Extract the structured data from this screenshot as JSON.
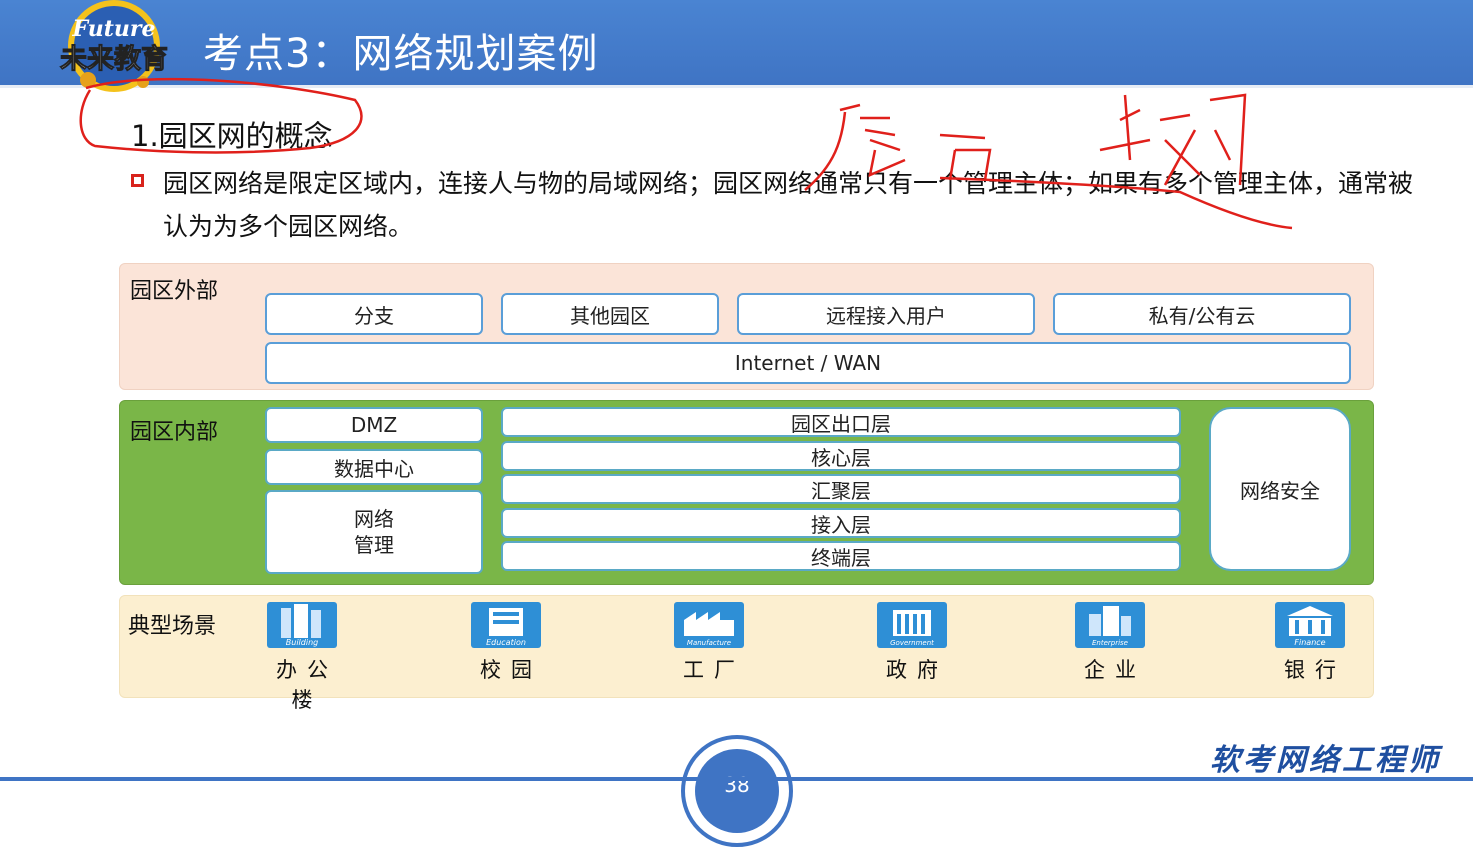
{
  "header": {
    "logo_text_top": "Future",
    "logo_text_bottom": "未来教育",
    "title": "考点3：网络规划案例"
  },
  "section_title": "1.园区网的概念",
  "paragraph": "园区网络是限定区域内，连接人与物的局域网络；园区网络通常只有一个管理主体；如果有多个管理主体，通常被认为为多个园区网络。",
  "outer": {
    "label": "园区外部",
    "boxes": [
      "分支",
      "其他园区",
      "远程接入用户",
      "私有/公有云"
    ],
    "wan": "Internet / WAN"
  },
  "inner": {
    "label": "园区内部",
    "left_boxes": [
      "DMZ",
      "数据中心",
      "网络\n管理"
    ],
    "layers": [
      "园区出口层",
      "核心层",
      "汇聚层",
      "接入层",
      "终端层"
    ],
    "security": "网络安全"
  },
  "scenes": {
    "label": "典型场景",
    "items": [
      {
        "label": "办公楼",
        "icon_text": "Building",
        "icon": "office-building-icon"
      },
      {
        "label": "校园",
        "icon_text": "Education",
        "icon": "campus-icon"
      },
      {
        "label": "工厂",
        "icon_text": "Manufacture",
        "icon": "factory-icon"
      },
      {
        "label": "政府",
        "icon_text": "Government",
        "icon": "government-icon"
      },
      {
        "label": "企业",
        "icon_text": "Enterprise",
        "icon": "enterprise-icon"
      },
      {
        "label": "银行",
        "icon_text": "Finance",
        "icon": "bank-icon"
      }
    ]
  },
  "page_number": "38",
  "footer_brand": "软考网络工程师",
  "colors": {
    "header_blue": "#3f74c4",
    "outer_panel": "#fbe4d8",
    "inner_panel": "#7ab648",
    "scene_panel": "#fcefd0",
    "annotation_red": "#e0201b"
  }
}
